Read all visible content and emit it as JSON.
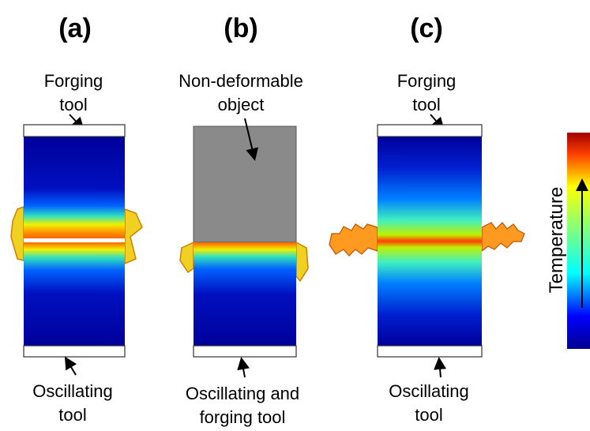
{
  "panels": [
    {
      "label": "(a)",
      "top_label": [
        "Forging",
        "tool"
      ],
      "bottom_label": [
        "Oscillating",
        "tool"
      ]
    },
    {
      "label": "(b)",
      "top_label": [
        "Non-deformable",
        "object"
      ],
      "bottom_label": [
        "Oscillating and",
        "forging tool"
      ]
    },
    {
      "label": "(c)",
      "top_label": [
        "Forging",
        "tool"
      ],
      "bottom_label": [
        "Oscillating",
        "tool"
      ]
    }
  ],
  "colorbar": {
    "label": "Temperature"
  }
}
